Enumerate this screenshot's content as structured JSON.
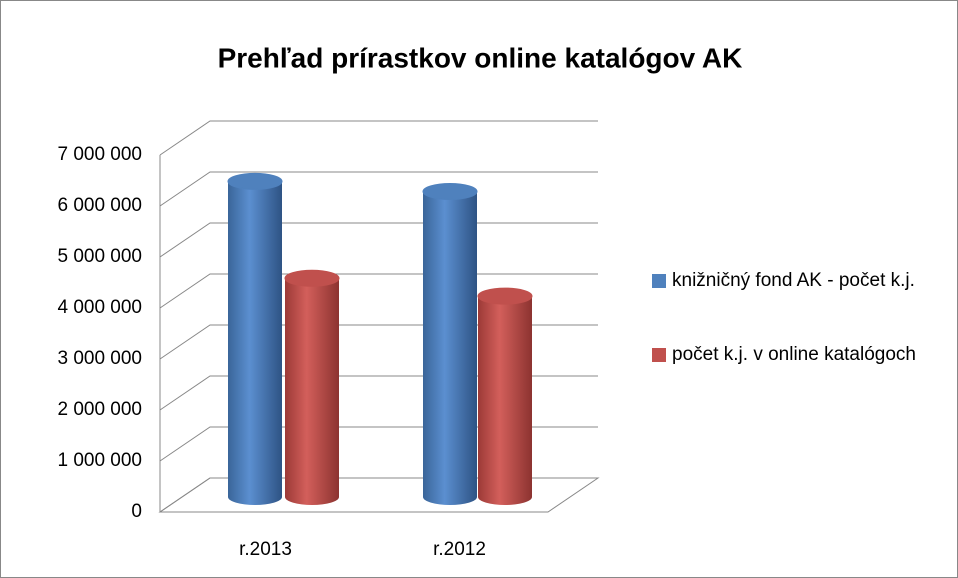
{
  "chart_data": {
    "type": "bar3d",
    "title": "Prehľad prírastkov online katalógov AK",
    "categories": [
      "r.2013",
      "r.2012"
    ],
    "series": [
      {
        "name": "knižničný fond AK - počet k.j.",
        "color": "#4f81bd",
        "values": [
          6150000,
          5950000
        ]
      },
      {
        "name": "počet k.j. v online katalógoch",
        "color": "#c0504d",
        "values": [
          4250000,
          3900000
        ]
      }
    ],
    "ylim": [
      0,
      7000000
    ],
    "yticks": [
      0,
      {
        "value": 1000000,
        "label": "1 000 000"
      },
      {
        "value": 2000000,
        "label": "2 000 000"
      },
      {
        "value": 3000000,
        "label": "3 000 000"
      },
      {
        "value": 4000000,
        "label": "4 000 000"
      },
      {
        "value": 5000000,
        "label": "5 000 000"
      },
      {
        "value": 6000000,
        "label": "6 000 000"
      },
      {
        "value": 7000000,
        "label": "7 000 000"
      }
    ],
    "grid": true,
    "legend": "right"
  }
}
